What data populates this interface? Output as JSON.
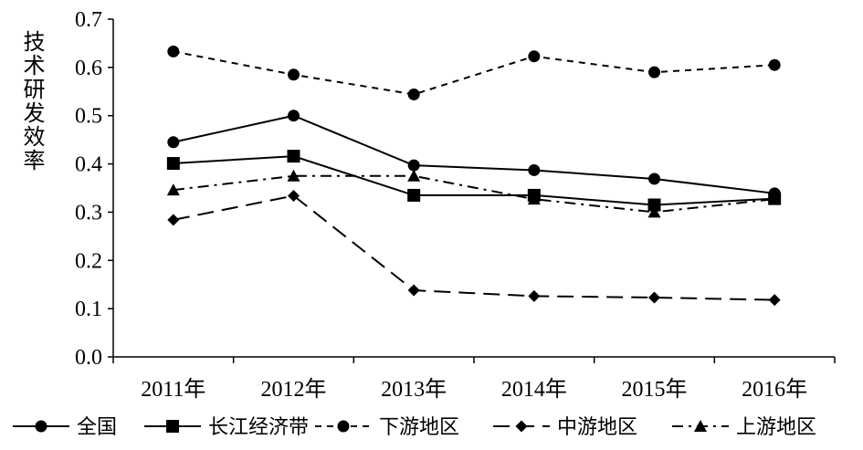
{
  "chart_data": {
    "type": "line",
    "title": "",
    "xlabel": "",
    "ylabel": "技术研发效率",
    "categories": [
      "2011年",
      "2012年",
      "2013年",
      "2014年",
      "2015年",
      "2016年"
    ],
    "ylim": [
      0,
      0.7
    ],
    "yticks": [
      "0.0",
      "0.1",
      "0.2",
      "0.3",
      "0.4",
      "0.5",
      "0.6",
      "0.7"
    ],
    "grid": false,
    "legend_position": "bottom",
    "series": [
      {
        "name": "全国",
        "marker": "circle",
        "line": "solid",
        "values": [
          0.445,
          0.5,
          0.397,
          0.387,
          0.369,
          0.339
        ]
      },
      {
        "name": "长江经济带",
        "marker": "square",
        "line": "solid",
        "values": [
          0.401,
          0.416,
          0.335,
          0.335,
          0.315,
          0.328
        ]
      },
      {
        "name": "下游地区",
        "marker": "circle",
        "line": "dashed",
        "values": [
          0.633,
          0.585,
          0.544,
          0.623,
          0.59,
          0.605
        ]
      },
      {
        "name": "中游地区",
        "marker": "diamond",
        "line": "long-dash",
        "values": [
          0.284,
          0.334,
          0.138,
          0.126,
          0.123,
          0.118
        ]
      },
      {
        "name": "上游地区",
        "marker": "triangle",
        "line": "dash-dot",
        "values": [
          0.346,
          0.375,
          0.375,
          0.327,
          0.3,
          0.327
        ]
      }
    ]
  }
}
